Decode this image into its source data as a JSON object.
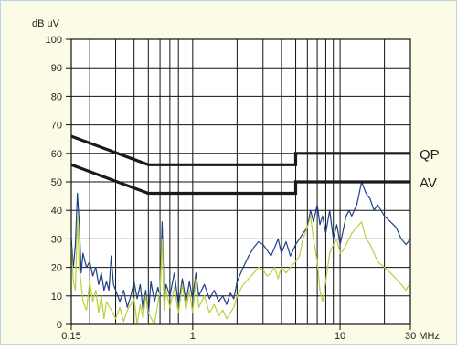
{
  "colors": {
    "background": "#fbfbe6",
    "frame": "#b9d3ea",
    "grid": "#111111",
    "limit": "#1a1a1a",
    "series_dark": "#1f3f86",
    "series_light": "#b9d13a"
  },
  "chart_data": {
    "type": "line",
    "title": "",
    "ylabel": "dB uV",
    "xlabel": "",
    "x_unit": "MHz",
    "x_scale": "log",
    "xlim": [
      0.15,
      30
    ],
    "ylim": [
      0,
      100
    ],
    "grid": true,
    "y_ticks": [
      0,
      10,
      20,
      30,
      40,
      50,
      60,
      70,
      80,
      90,
      100
    ],
    "x_tick_labels": [
      {
        "value": 0.15,
        "label": "0.15"
      },
      {
        "value": 1,
        "label": "1"
      },
      {
        "value": 10,
        "label": "10"
      },
      {
        "value": 30,
        "label": "30 MHz"
      }
    ],
    "x_grid_values": [
      0.15,
      0.2,
      0.3,
      0.4,
      0.5,
      0.6,
      0.7,
      0.8,
      0.9,
      1,
      2,
      3,
      4,
      5,
      6,
      7,
      8,
      9,
      10,
      20,
      30
    ],
    "limit_lines": [
      {
        "name": "QP",
        "points": [
          [
            0.15,
            66
          ],
          [
            0.5,
            56
          ],
          [
            5,
            56
          ],
          [
            5,
            60
          ],
          [
            30,
            60
          ]
        ]
      },
      {
        "name": "AV",
        "points": [
          [
            0.15,
            56
          ],
          [
            0.5,
            46
          ],
          [
            5,
            46
          ],
          [
            5,
            50
          ],
          [
            30,
            50
          ]
        ]
      }
    ],
    "series": [
      {
        "color": "#1f3f86",
        "points": [
          [
            0.15,
            30
          ],
          [
            0.155,
            20
          ],
          [
            0.16,
            28
          ],
          [
            0.165,
            46
          ],
          [
            0.17,
            35
          ],
          [
            0.175,
            18
          ],
          [
            0.18,
            25
          ],
          [
            0.19,
            20
          ],
          [
            0.2,
            22
          ],
          [
            0.21,
            17
          ],
          [
            0.22,
            20
          ],
          [
            0.23,
            14
          ],
          [
            0.24,
            18
          ],
          [
            0.25,
            12
          ],
          [
            0.26,
            15
          ],
          [
            0.27,
            12
          ],
          [
            0.28,
            24
          ],
          [
            0.29,
            14
          ],
          [
            0.3,
            12
          ],
          [
            0.32,
            8
          ],
          [
            0.34,
            12
          ],
          [
            0.36,
            6
          ],
          [
            0.38,
            10
          ],
          [
            0.4,
            15
          ],
          [
            0.42,
            9
          ],
          [
            0.44,
            14
          ],
          [
            0.46,
            5
          ],
          [
            0.48,
            12
          ],
          [
            0.5,
            3
          ],
          [
            0.52,
            15
          ],
          [
            0.55,
            8
          ],
          [
            0.58,
            13
          ],
          [
            0.6,
            10
          ],
          [
            0.62,
            36
          ],
          [
            0.64,
            8
          ],
          [
            0.66,
            14
          ],
          [
            0.7,
            10
          ],
          [
            0.75,
            18
          ],
          [
            0.8,
            7
          ],
          [
            0.85,
            16
          ],
          [
            0.9,
            8
          ],
          [
            0.95,
            15
          ],
          [
            1.0,
            9
          ],
          [
            1.05,
            18
          ],
          [
            1.1,
            10
          ],
          [
            1.2,
            14
          ],
          [
            1.3,
            9
          ],
          [
            1.4,
            12
          ],
          [
            1.5,
            8
          ],
          [
            1.6,
            10
          ],
          [
            1.7,
            7
          ],
          [
            1.8,
            11
          ],
          [
            1.9,
            9
          ],
          [
            2.0,
            15
          ],
          [
            2.2,
            20
          ],
          [
            2.4,
            24
          ],
          [
            2.6,
            27
          ],
          [
            2.8,
            29
          ],
          [
            3.0,
            28
          ],
          [
            3.2,
            26
          ],
          [
            3.4,
            24
          ],
          [
            3.6,
            27
          ],
          [
            3.8,
            30
          ],
          [
            4.0,
            25
          ],
          [
            4.3,
            29
          ],
          [
            4.6,
            24
          ],
          [
            5.0,
            28
          ],
          [
            5.3,
            30
          ],
          [
            5.6,
            32
          ],
          [
            6.0,
            34
          ],
          [
            6.3,
            40
          ],
          [
            6.6,
            36
          ],
          [
            7.0,
            42
          ],
          [
            7.3,
            35
          ],
          [
            7.6,
            38
          ],
          [
            8.0,
            32
          ],
          [
            8.5,
            40
          ],
          [
            9.0,
            30
          ],
          [
            9.5,
            35
          ],
          [
            10,
            28
          ],
          [
            10.5,
            33
          ],
          [
            11,
            38
          ],
          [
            11.5,
            40
          ],
          [
            12,
            38
          ],
          [
            13,
            42
          ],
          [
            14,
            50
          ],
          [
            15,
            46
          ],
          [
            16,
            44
          ],
          [
            17,
            40
          ],
          [
            18,
            42
          ],
          [
            20,
            38
          ],
          [
            22,
            36
          ],
          [
            24,
            34
          ],
          [
            26,
            30
          ],
          [
            28,
            28
          ],
          [
            30,
            30
          ]
        ]
      },
      {
        "color": "#b9d13a",
        "points": [
          [
            0.15,
            28
          ],
          [
            0.155,
            15
          ],
          [
            0.16,
            12
          ],
          [
            0.165,
            38
          ],
          [
            0.17,
            20
          ],
          [
            0.18,
            8
          ],
          [
            0.19,
            5
          ],
          [
            0.2,
            15
          ],
          [
            0.21,
            8
          ],
          [
            0.22,
            12
          ],
          [
            0.23,
            4
          ],
          [
            0.24,
            10
          ],
          [
            0.25,
            2
          ],
          [
            0.26,
            8
          ],
          [
            0.28,
            5
          ],
          [
            0.3,
            2
          ],
          [
            0.32,
            6
          ],
          [
            0.34,
            1
          ],
          [
            0.36,
            5
          ],
          [
            0.4,
            9
          ],
          [
            0.42,
            0
          ],
          [
            0.44,
            7
          ],
          [
            0.46,
            2
          ],
          [
            0.48,
            10
          ],
          [
            0.5,
            4
          ],
          [
            0.55,
            0
          ],
          [
            0.6,
            12
          ],
          [
            0.62,
            30
          ],
          [
            0.64,
            5
          ],
          [
            0.66,
            12
          ],
          [
            0.7,
            6
          ],
          [
            0.75,
            13
          ],
          [
            0.8,
            4
          ],
          [
            0.85,
            14
          ],
          [
            0.9,
            5
          ],
          [
            0.95,
            12
          ],
          [
            1.0,
            4
          ],
          [
            1.05,
            16
          ],
          [
            1.1,
            6
          ],
          [
            1.2,
            10
          ],
          [
            1.3,
            4
          ],
          [
            1.4,
            7
          ],
          [
            1.5,
            3
          ],
          [
            1.6,
            5
          ],
          [
            1.7,
            2
          ],
          [
            1.8,
            4
          ],
          [
            1.9,
            6
          ],
          [
            2.0,
            10
          ],
          [
            2.2,
            14
          ],
          [
            2.4,
            16
          ],
          [
            2.6,
            18
          ],
          [
            2.8,
            20
          ],
          [
            3.0,
            19
          ],
          [
            3.2,
            17
          ],
          [
            3.4,
            18
          ],
          [
            3.6,
            20
          ],
          [
            3.8,
            16
          ],
          [
            4.0,
            20
          ],
          [
            4.3,
            18
          ],
          [
            4.6,
            20
          ],
          [
            5.0,
            22
          ],
          [
            5.3,
            24
          ],
          [
            5.6,
            30
          ],
          [
            6.0,
            34
          ],
          [
            6.3,
            38
          ],
          [
            6.6,
            30
          ],
          [
            7.0,
            22
          ],
          [
            7.3,
            12
          ],
          [
            7.6,
            8
          ],
          [
            8.0,
            15
          ],
          [
            8.5,
            25
          ],
          [
            9.0,
            28
          ],
          [
            9.5,
            30
          ],
          [
            10,
            25
          ],
          [
            10.5,
            26
          ],
          [
            11,
            28
          ],
          [
            11.5,
            30
          ],
          [
            12,
            32
          ],
          [
            13,
            34
          ],
          [
            14,
            36
          ],
          [
            15,
            30
          ],
          [
            16,
            28
          ],
          [
            17,
            25
          ],
          [
            18,
            22
          ],
          [
            20,
            20
          ],
          [
            22,
            18
          ],
          [
            24,
            16
          ],
          [
            26,
            14
          ],
          [
            28,
            12
          ],
          [
            30,
            15
          ]
        ]
      }
    ]
  }
}
